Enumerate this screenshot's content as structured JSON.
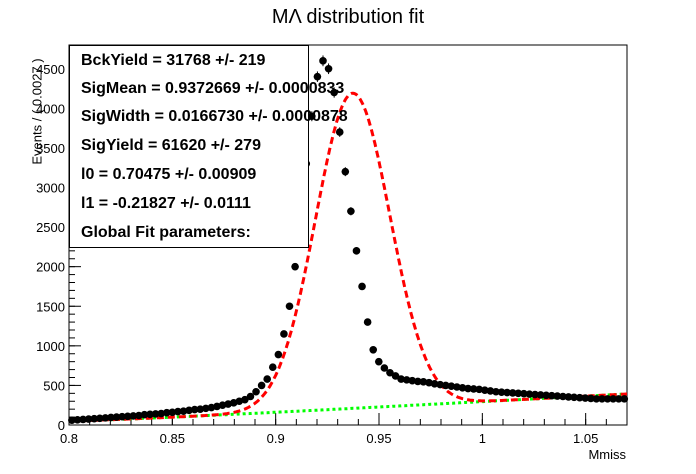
{
  "chart_data": {
    "type": "scatter",
    "title": "MΛ distribution fit",
    "xlabel": "Mmiss",
    "ylabel": "Events / ( 0.0027 )",
    "xlim": [
      0.8,
      1.07
    ],
    "ylim": [
      0,
      4800
    ],
    "xticks": [
      0.8,
      0.85,
      0.9,
      0.95,
      1,
      1.05
    ],
    "xtick_labels": [
      "0.8",
      "0.85",
      "0.9",
      "0.95",
      "1",
      "1.05"
    ],
    "yticks": [
      0,
      500,
      1000,
      1500,
      2000,
      2500,
      3000,
      3500,
      4000,
      4500
    ],
    "ytick_labels": [
      "0",
      "500",
      "1000",
      "1500",
      "2000",
      "2500",
      "3000",
      "3500",
      "4000",
      "4500"
    ],
    "series": [
      {
        "kind": "data-points",
        "color": "#000000",
        "x": [
          0.8014,
          0.8041,
          0.8068,
          0.8095,
          0.8122,
          0.8149,
          0.8176,
          0.8203,
          0.823,
          0.8257,
          0.8284,
          0.8311,
          0.8338,
          0.8365,
          0.8392,
          0.8419,
          0.8446,
          0.8473,
          0.85,
          0.8527,
          0.8554,
          0.8581,
          0.8608,
          0.8635,
          0.8662,
          0.8689,
          0.8716,
          0.8743,
          0.877,
          0.8797,
          0.8824,
          0.8851,
          0.8878,
          0.8905,
          0.8932,
          0.8959,
          0.8986,
          0.9013,
          0.904,
          0.9067,
          0.9094,
          0.9121,
          0.9148,
          0.9175,
          0.9202,
          0.9229,
          0.9256,
          0.9283,
          0.931,
          0.9337,
          0.9364,
          0.9391,
          0.9418,
          0.9445,
          0.9472,
          0.9499,
          0.9526,
          0.9553,
          0.958,
          0.9607,
          0.9634,
          0.9661,
          0.9688,
          0.9715,
          0.9742,
          0.9769,
          0.9796,
          0.9823,
          0.985,
          0.9877,
          0.9904,
          0.9931,
          0.9958,
          0.9985,
          1.0012,
          1.0039,
          1.0066,
          1.0093,
          1.012,
          1.0147,
          1.0174,
          1.0201,
          1.0228,
          1.0255,
          1.0282,
          1.0309,
          1.0336,
          1.0363,
          1.039,
          1.0417,
          1.0444,
          1.0471,
          1.0498,
          1.0525,
          1.0552,
          1.0579,
          1.0606,
          1.0633,
          1.066,
          1.0687
        ],
        "y": [
          60,
          65,
          70,
          75,
          80,
          85,
          90,
          95,
          100,
          105,
          110,
          115,
          120,
          130,
          135,
          140,
          145,
          155,
          160,
          170,
          175,
          185,
          195,
          200,
          210,
          220,
          235,
          250,
          265,
          280,
          300,
          320,
          360,
          420,
          500,
          580,
          730,
          890,
          1150,
          1500,
          2000,
          2600,
          3300,
          3900,
          4400,
          4600,
          4500,
          4200,
          3700,
          3200,
          2700,
          2200,
          1750,
          1300,
          950,
          800,
          720,
          660,
          620,
          580,
          570,
          560,
          550,
          545,
          535,
          520,
          510,
          500,
          490,
          480,
          470,
          460,
          455,
          450,
          440,
          430,
          420,
          415,
          410,
          405,
          400,
          395,
          390,
          385,
          380,
          375,
          370,
          365,
          360,
          355,
          350,
          345,
          340,
          335,
          330,
          330,
          330,
          330,
          330,
          330
        ],
        "x_resolved": true
      },
      {
        "kind": "total-fit",
        "color": "#ff0000",
        "style": "dashed"
      },
      {
        "kind": "background-fit",
        "color": "#00ff00",
        "style": "dotted"
      }
    ],
    "legend": "top-left"
  },
  "fit_box": {
    "lines": [
      "BckYield =  31768 +/- 219",
      "SigMean =  0.9372669 +/- 0.0000833",
      "SigWidth =  0.0166730 +/- 0.0000878",
      "SigYield =  61620 +/- 279",
      "l0 =  0.70475 +/- 0.00909",
      "l1 = -0.21827 +/- 0.0111",
      "Global Fit parameters:"
    ]
  }
}
